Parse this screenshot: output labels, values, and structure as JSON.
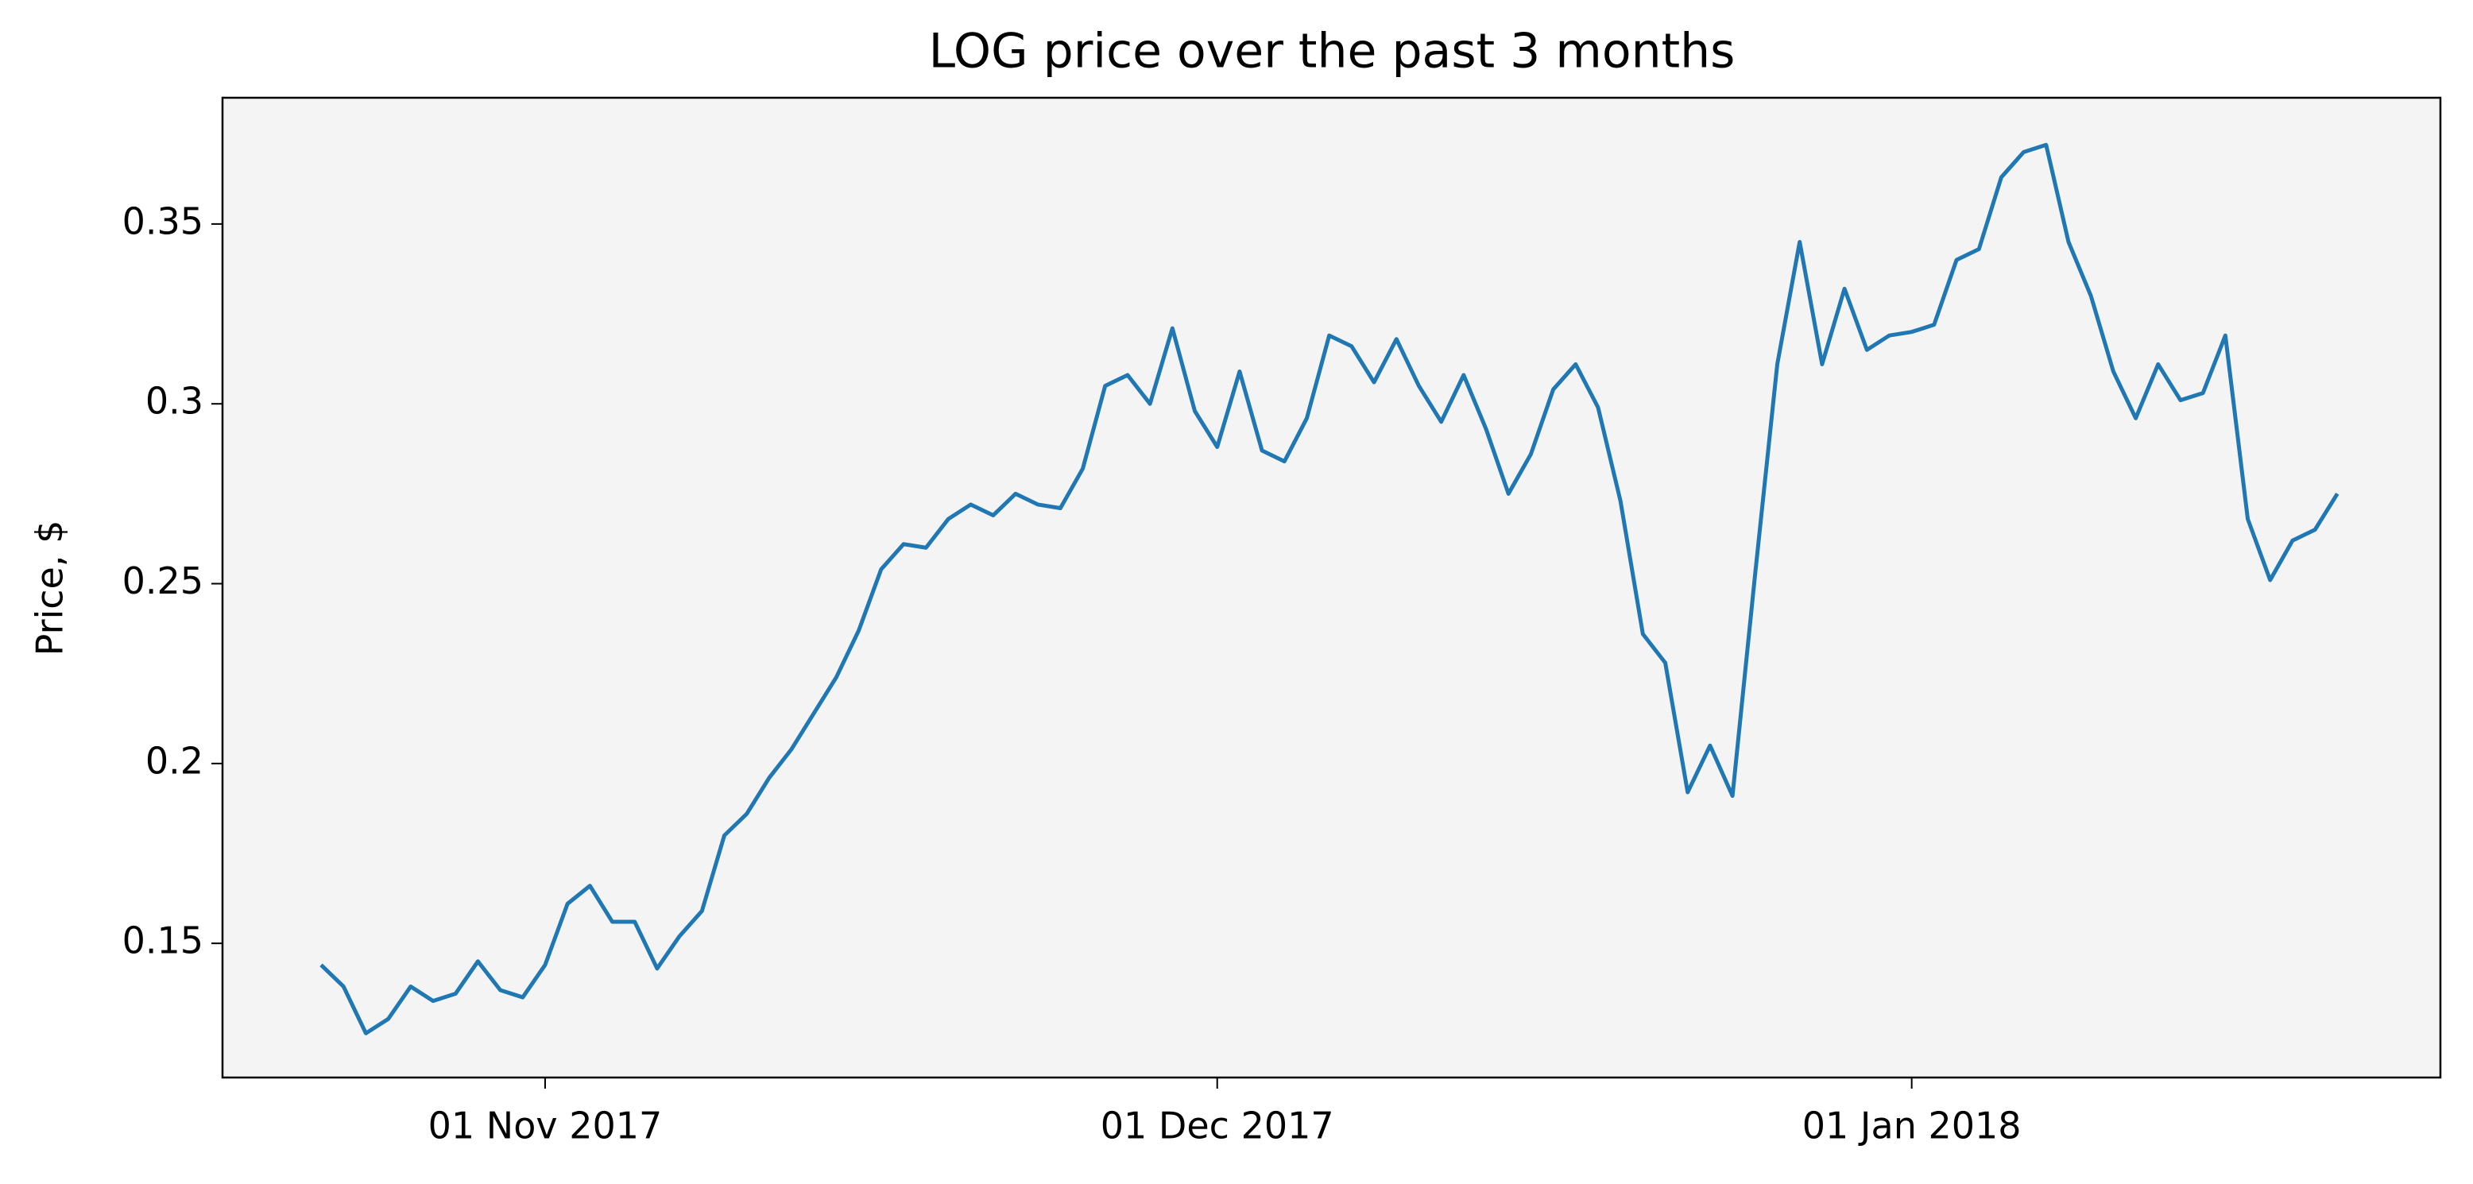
{
  "chart_data": {
    "type": "line",
    "title": "LOG price over the past 3 months",
    "y_label": "Price, $",
    "x": [
      "2017-10-22",
      "2017-10-23",
      "2017-10-24",
      "2017-10-25",
      "2017-10-26",
      "2017-10-27",
      "2017-10-28",
      "2017-10-29",
      "2017-10-30",
      "2017-10-31",
      "2017-11-01",
      "2017-11-02",
      "2017-11-03",
      "2017-11-04",
      "2017-11-05",
      "2017-11-06",
      "2017-11-07",
      "2017-11-08",
      "2017-11-09",
      "2017-11-10",
      "2017-11-11",
      "2017-11-12",
      "2017-11-13",
      "2017-11-14",
      "2017-11-15",
      "2017-11-16",
      "2017-11-17",
      "2017-11-18",
      "2017-11-19",
      "2017-11-20",
      "2017-11-21",
      "2017-11-22",
      "2017-11-23",
      "2017-11-24",
      "2017-11-25",
      "2017-11-26",
      "2017-11-27",
      "2017-11-28",
      "2017-11-29",
      "2017-11-30",
      "2017-12-01",
      "2017-12-02",
      "2017-12-03",
      "2017-12-04",
      "2017-12-05",
      "2017-12-06",
      "2017-12-07",
      "2017-12-08",
      "2017-12-09",
      "2017-12-10",
      "2017-12-11",
      "2017-12-12",
      "2017-12-13",
      "2017-12-14",
      "2017-12-15",
      "2017-12-16",
      "2017-12-17",
      "2017-12-18",
      "2017-12-19",
      "2017-12-20",
      "2017-12-21",
      "2017-12-22",
      "2017-12-23",
      "2017-12-24",
      "2017-12-25",
      "2017-12-26",
      "2017-12-27",
      "2017-12-28",
      "2017-12-29",
      "2017-12-30",
      "2017-12-31",
      "2018-01-01",
      "2018-01-02",
      "2018-01-03",
      "2018-01-04",
      "2018-01-05",
      "2018-01-06",
      "2018-01-07",
      "2018-01-08",
      "2018-01-09",
      "2018-01-10",
      "2018-01-11",
      "2018-01-12",
      "2018-01-13",
      "2018-01-14",
      "2018-01-15",
      "2018-01-16",
      "2018-01-17",
      "2018-01-18",
      "2018-01-19",
      "2018-01-20"
    ],
    "values": [
      0.144,
      0.138,
      0.125,
      0.129,
      0.138,
      0.134,
      0.136,
      0.145,
      0.137,
      0.135,
      0.144,
      0.161,
      0.166,
      0.156,
      0.156,
      0.143,
      0.152,
      0.159,
      0.18,
      0.186,
      0.196,
      0.204,
      0.214,
      0.224,
      0.237,
      0.254,
      0.261,
      0.26,
      0.268,
      0.272,
      0.269,
      0.275,
      0.272,
      0.271,
      0.282,
      0.305,
      0.308,
      0.3,
      0.321,
      0.298,
      0.288,
      0.309,
      0.287,
      0.284,
      0.296,
      0.319,
      0.316,
      0.306,
      0.318,
      0.305,
      0.295,
      0.308,
      0.293,
      0.275,
      0.286,
      0.304,
      0.311,
      0.299,
      0.273,
      0.236,
      0.228,
      0.192,
      0.205,
      0.191,
      0.252,
      0.311,
      0.345,
      0.311,
      0.332,
      0.315,
      0.319,
      0.32,
      0.322,
      0.34,
      0.343,
      0.363,
      0.37,
      0.372,
      0.345,
      0.33,
      0.309,
      0.296,
      0.311,
      0.301,
      0.303,
      0.319,
      0.268,
      0.251,
      0.262,
      0.265,
      0.275
    ],
    "color": "#1f77b4",
    "background": "#f4f4f4",
    "xlim": [
      "2017-10-17T14:24:00Z",
      "2018-01-24T14:24:00Z"
    ],
    "xticks": [
      {
        "value": "2017-11-01",
        "label": "01 Nov 2017"
      },
      {
        "value": "2017-12-01",
        "label": "01 Dec 2017"
      },
      {
        "value": "2018-01-01",
        "label": "01 Jan 2018"
      }
    ],
    "ylim": [
      0.1127,
      0.3851
    ],
    "yticks": [
      0.15,
      0.2,
      0.25,
      0.3,
      0.35
    ],
    "grid": false
  }
}
